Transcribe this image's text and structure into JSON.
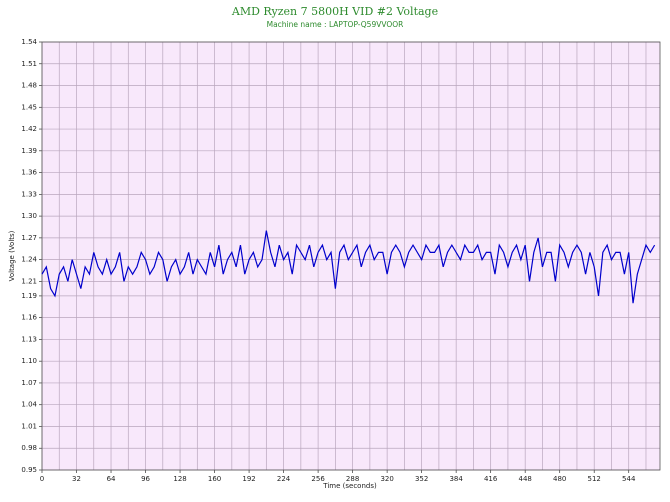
{
  "chart_data": {
    "type": "line",
    "title": "AMD Ryzen 7 5800H VID #2 Voltage",
    "subtitle": "Machine name : LAPTOP-Q59VVOOR",
    "xlabel": "Time (seconds)",
    "ylabel": "Voltage (Volts)",
    "xlim": [
      0,
      573
    ],
    "ylim": [
      0.95,
      1.54
    ],
    "xticks": [
      0,
      32,
      64,
      96,
      128,
      160,
      192,
      224,
      256,
      288,
      320,
      352,
      384,
      416,
      448,
      480,
      512,
      544
    ],
    "x_minor_grid": [
      16,
      48,
      80,
      112,
      144,
      176,
      208,
      240,
      272,
      304,
      336,
      368,
      400,
      432,
      464,
      496,
      528,
      560
    ],
    "yticks": [
      {
        "value": 0.95,
        "label": "0.95"
      },
      {
        "value": 0.98,
        "label": "0.98"
      },
      {
        "value": 1.01,
        "label": "1.01"
      },
      {
        "value": 1.04,
        "label": "1.04"
      },
      {
        "value": 1.07,
        "label": "1.07"
      },
      {
        "value": 1.1,
        "label": "1.10"
      },
      {
        "value": 1.13,
        "label": "1.13"
      },
      {
        "value": 1.16,
        "label": "1.16"
      },
      {
        "value": 1.19,
        "label": "1.19"
      },
      {
        "value": 1.21,
        "label": "1.21"
      },
      {
        "value": 1.24,
        "label": "1.24"
      },
      {
        "value": 1.27,
        "label": "1.27"
      },
      {
        "value": 1.3,
        "label": "1.30"
      },
      {
        "value": 1.33,
        "label": "1.33"
      },
      {
        "value": 1.36,
        "label": "1.36"
      },
      {
        "value": 1.39,
        "label": "1.39"
      },
      {
        "value": 1.42,
        "label": "1.42"
      },
      {
        "value": 1.45,
        "label": "1.45"
      },
      {
        "value": 1.48,
        "label": "1.48"
      },
      {
        "value": 1.51,
        "label": "1.51"
      },
      {
        "value": 1.54,
        "label": "1.54"
      }
    ],
    "grid": true,
    "x": [
      0,
      4,
      8,
      12,
      16,
      20,
      24,
      28,
      32,
      36,
      40,
      44,
      48,
      52,
      56,
      60,
      64,
      68,
      72,
      76,
      80,
      84,
      88,
      92,
      96,
      100,
      104,
      108,
      112,
      116,
      120,
      124,
      128,
      132,
      136,
      140,
      144,
      148,
      152,
      156,
      160,
      164,
      168,
      172,
      176,
      180,
      184,
      188,
      192,
      196,
      200,
      204,
      208,
      212,
      216,
      220,
      224,
      228,
      232,
      236,
      240,
      244,
      248,
      252,
      256,
      260,
      264,
      268,
      272,
      276,
      280,
      284,
      288,
      292,
      296,
      300,
      304,
      308,
      312,
      316,
      320,
      324,
      328,
      332,
      336,
      340,
      344,
      348,
      352,
      356,
      360,
      364,
      368,
      372,
      376,
      380,
      384,
      388,
      392,
      396,
      400,
      404,
      408,
      412,
      416,
      420,
      424,
      428,
      432,
      436,
      440,
      444,
      448,
      452,
      456,
      460,
      464,
      468,
      472,
      476,
      480,
      484,
      488,
      492,
      496,
      500,
      504,
      508,
      512,
      516,
      520,
      524,
      528,
      532,
      536,
      540,
      544,
      548,
      552,
      556,
      560,
      564,
      568
    ],
    "series": [
      {
        "name": "VID #2 Voltage",
        "color": "#0000cc",
        "values": [
          1.22,
          1.23,
          1.2,
          1.19,
          1.22,
          1.23,
          1.21,
          1.24,
          1.22,
          1.2,
          1.23,
          1.22,
          1.25,
          1.23,
          1.22,
          1.24,
          1.22,
          1.23,
          1.25,
          1.21,
          1.23,
          1.22,
          1.23,
          1.25,
          1.24,
          1.22,
          1.23,
          1.25,
          1.24,
          1.21,
          1.23,
          1.24,
          1.22,
          1.23,
          1.25,
          1.22,
          1.24,
          1.23,
          1.22,
          1.25,
          1.23,
          1.26,
          1.22,
          1.24,
          1.25,
          1.23,
          1.26,
          1.22,
          1.24,
          1.25,
          1.23,
          1.24,
          1.28,
          1.25,
          1.23,
          1.26,
          1.24,
          1.25,
          1.22,
          1.26,
          1.25,
          1.24,
          1.26,
          1.23,
          1.25,
          1.26,
          1.24,
          1.25,
          1.2,
          1.25,
          1.26,
          1.24,
          1.25,
          1.26,
          1.23,
          1.25,
          1.26,
          1.24,
          1.25,
          1.25,
          1.22,
          1.25,
          1.26,
          1.25,
          1.23,
          1.25,
          1.26,
          1.25,
          1.24,
          1.26,
          1.25,
          1.25,
          1.26,
          1.23,
          1.25,
          1.26,
          1.25,
          1.24,
          1.26,
          1.25,
          1.25,
          1.26,
          1.24,
          1.25,
          1.25,
          1.22,
          1.26,
          1.25,
          1.23,
          1.25,
          1.26,
          1.24,
          1.26,
          1.21,
          1.25,
          1.27,
          1.23,
          1.25,
          1.25,
          1.21,
          1.26,
          1.25,
          1.23,
          1.25,
          1.26,
          1.25,
          1.22,
          1.25,
          1.23,
          1.19,
          1.25,
          1.26,
          1.24,
          1.25,
          1.25,
          1.22,
          1.25,
          1.18,
          1.22,
          1.24,
          1.26,
          1.25,
          1.26
        ]
      }
    ]
  }
}
